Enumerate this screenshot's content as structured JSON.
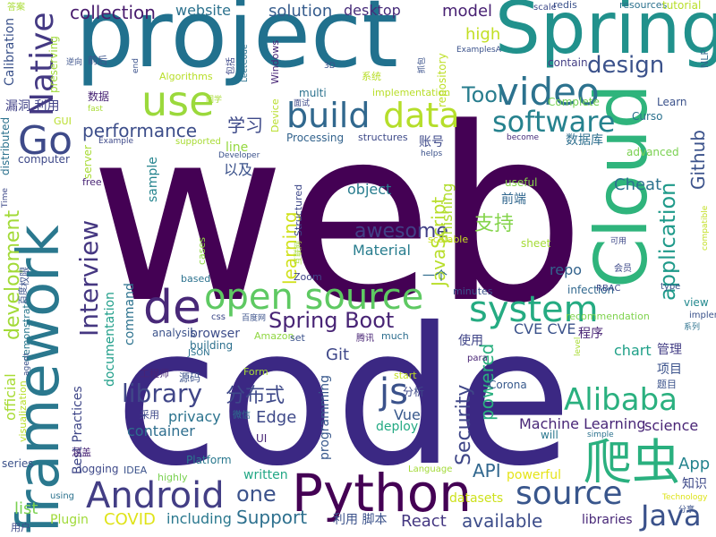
{
  "palette": {
    "deep_purple": "#440154",
    "indigo": "#3b2883",
    "blue": "#31688e",
    "teal": "#21918c",
    "green": "#35b779",
    "lime": "#90d743",
    "yellow": "#dde318"
  },
  "words": [
    {
      "text": "web",
      "color": "#440154"
    },
    {
      "text": "code",
      "color": "#3b2883"
    },
    {
      "text": "project",
      "color": "#21718e"
    },
    {
      "text": "Spring",
      "color": "#21918c"
    },
    {
      "text": "Cloud",
      "color": "#2fb47c"
    },
    {
      "text": "framework",
      "color": "#2a788e"
    },
    {
      "text": "Python",
      "color": "#440154"
    },
    {
      "text": "Android",
      "color": "#433e85"
    },
    {
      "text": "open source",
      "color": "#5ec962"
    },
    {
      "text": "use",
      "color": "#9bd93c"
    },
    {
      "text": "build",
      "color": "#31688e"
    },
    {
      "text": "data",
      "color": "#b5de2b"
    },
    {
      "text": "video",
      "color": "#2c728e"
    },
    {
      "text": "software",
      "color": "#26828e"
    },
    {
      "text": "Go",
      "color": "#3e4a89"
    },
    {
      "text": "de",
      "color": "#482878"
    },
    {
      "text": "system",
      "color": "#25ab82"
    },
    {
      "text": "Native",
      "color": "#443983"
    },
    {
      "text": "design",
      "color": "#3b528b"
    },
    {
      "text": "Alibaba",
      "color": "#2ab07f"
    },
    {
      "text": "js",
      "color": "#3b528b"
    },
    {
      "text": "爬虫",
      "color": "#2ab07f"
    },
    {
      "text": "source",
      "color": "#39568c"
    },
    {
      "text": "Java",
      "color": "#3b528b"
    },
    {
      "text": "library",
      "color": "#404688"
    },
    {
      "text": "Interview",
      "color": "#453781"
    },
    {
      "text": "Spring Boot",
      "color": "#482475"
    },
    {
      "text": "分布式",
      "color": "#3e4989"
    },
    {
      "text": "one",
      "color": "#3b528b"
    },
    {
      "text": "Tool",
      "color": "#287d8e"
    },
    {
      "text": "application",
      "color": "#1f9a8a"
    },
    {
      "text": "performance",
      "color": "#3d4e8a"
    },
    {
      "text": "Github",
      "color": "#3b528b"
    },
    {
      "text": "awesome",
      "color": "#424086"
    },
    {
      "text": "collection",
      "color": "#481b6d"
    },
    {
      "text": "website",
      "color": "#2c728e"
    },
    {
      "text": "solution",
      "color": "#365c8d"
    },
    {
      "text": "desktop",
      "color": "#472c7a"
    },
    {
      "text": "model",
      "color": "#482173"
    },
    {
      "text": "high",
      "color": "#c2df23"
    },
    {
      "text": "学习",
      "color": "#3e4a89"
    },
    {
      "text": "Security",
      "color": "#3f4788"
    },
    {
      "text": "powered",
      "color": "#29af7f"
    },
    {
      "text": "development",
      "color": "#a2da37"
    },
    {
      "text": "JavaScript",
      "color": "#b8de29"
    },
    {
      "text": "支持",
      "color": "#84d44b"
    },
    {
      "text": "Cheat",
      "color": "#2c728e"
    },
    {
      "text": "object",
      "color": "#287c8e"
    },
    {
      "text": "Material",
      "color": "#287d8e"
    },
    {
      "text": "learning",
      "color": "#d0e11c"
    },
    {
      "text": "Support",
      "color": "#2d708e"
    },
    {
      "text": "Machine Learning",
      "color": "#482677"
    },
    {
      "text": "Edge",
      "color": "#3e4989"
    },
    {
      "text": "React",
      "color": "#453882"
    },
    {
      "text": "API",
      "color": "#31678e"
    },
    {
      "text": "App",
      "color": "#25848e"
    },
    {
      "text": "COVID",
      "color": "#dfe318"
    },
    {
      "text": "Git",
      "color": "#3f4889"
    },
    {
      "text": "Vue",
      "color": "#38598c"
    },
    {
      "text": "container",
      "color": "#2e6e8e"
    },
    {
      "text": "privacy",
      "color": "#2c738e"
    },
    {
      "text": "available",
      "color": "#3d4d8a"
    },
    {
      "text": "list",
      "color": "#7ad151"
    },
    {
      "text": "official",
      "color": "#a8db34"
    },
    {
      "text": "Phishing",
      "color": "#b0dd2f"
    },
    {
      "text": "repo",
      "color": "#33638d"
    },
    {
      "text": "CVE CVE",
      "color": "#3b528b"
    },
    {
      "text": "chart",
      "color": "#1fa088"
    },
    {
      "text": "science",
      "color": "#482475"
    },
    {
      "text": "including",
      "color": "#2a788e"
    },
    {
      "text": "written",
      "color": "#22a785"
    },
    {
      "text": "programming",
      "color": "#38588c"
    },
    {
      "text": "deploy",
      "color": "#24aa83"
    },
    {
      "text": "browser",
      "color": "#3d4d8a"
    },
    {
      "text": "sample",
      "color": "#25848e"
    },
    {
      "text": "command",
      "color": "#2c728e"
    },
    {
      "text": "documentation",
      "color": "#1f9e89"
    },
    {
      "text": "Best Practices",
      "color": "#3f4788"
    },
    {
      "text": "powerful",
      "color": "#e5e419"
    },
    {
      "text": "libraries",
      "color": "#482878"
    },
    {
      "text": "Plugin",
      "color": "#a0da39"
    },
    {
      "text": "知识",
      "color": "#3e4989"
    },
    {
      "text": "程序",
      "color": "#482475"
    },
    {
      "text": "管理",
      "color": "#433e85"
    },
    {
      "text": "项目",
      "color": "#3b528b"
    },
    {
      "text": "使用",
      "color": "#404588"
    },
    {
      "text": "前端",
      "color": "#31678e"
    },
    {
      "text": "数据库",
      "color": "#2e6f8e"
    },
    {
      "text": "账号",
      "color": "#3e4989"
    },
    {
      "text": "一个",
      "color": "#2f6c8e"
    },
    {
      "text": "以及",
      "color": "#3b528b"
    },
    {
      "text": "利用 脚本",
      "color": "#3b528b"
    },
    {
      "text": "漏洞 利用",
      "color": "#414287"
    },
    {
      "text": "logging",
      "color": "#3e4989"
    },
    {
      "text": "Zoom",
      "color": "#404588"
    },
    {
      "text": "minutes",
      "color": "#3b528b"
    },
    {
      "text": "infection",
      "color": "#31688e"
    },
    {
      "text": "Curso",
      "color": "#2c728e"
    },
    {
      "text": "Corona",
      "color": "#38598c"
    },
    {
      "text": "UI",
      "color": "#482475"
    },
    {
      "text": "view",
      "color": "#23898e"
    },
    {
      "text": "recommendation",
      "color": "#7fd34e"
    },
    {
      "text": "structures",
      "color": "#3e4a89"
    },
    {
      "text": "line",
      "color": "#95d840"
    },
    {
      "text": "Processing",
      "color": "#33638d"
    },
    {
      "text": "scalable",
      "color": "#c8e020"
    },
    {
      "text": "sheet",
      "color": "#a5db36"
    },
    {
      "text": "repository",
      "color": "#bddf26"
    },
    {
      "text": "multi",
      "color": "#2c728e"
    },
    {
      "text": "advanced",
      "color": "#7ad151"
    },
    {
      "text": "become",
      "color": "#472d7b"
    },
    {
      "text": "Learn",
      "color": "#3b528b"
    },
    {
      "text": "Complete",
      "color": "#75d054"
    },
    {
      "text": "contain",
      "color": "#433e85"
    },
    {
      "text": "useful",
      "color": "#86d549"
    },
    {
      "text": "Platform",
      "color": "#2a788e"
    },
    {
      "text": "highly",
      "color": "#7ad151"
    },
    {
      "text": "Device",
      "color": "#b8de29"
    },
    {
      "text": "Windows",
      "color": "#482677"
    },
    {
      "text": "Structured",
      "color": "#3e4989"
    },
    {
      "text": "Language",
      "color": "#a2da37"
    },
    {
      "text": "datasets",
      "color": "#cde11d"
    },
    {
      "text": "cases",
      "color": "#90d743"
    },
    {
      "text": "based",
      "color": "#2c728e"
    },
    {
      "text": "analysis",
      "color": "#3b528b"
    },
    {
      "text": "building",
      "color": "#2d708e"
    },
    {
      "text": "much",
      "color": "#2e6e8e"
    },
    {
      "text": "Amazon",
      "color": "#90d743"
    },
    {
      "text": "Form",
      "color": "#a8db34"
    },
    {
      "text": "start",
      "color": "#c2df23"
    },
    {
      "text": "will",
      "color": "#2a788e"
    },
    {
      "text": "type",
      "color": "#3b528b"
    },
    {
      "text": "RBAC",
      "color": "#3e4a89"
    },
    {
      "text": "implemented",
      "color": "#3b528b"
    },
    {
      "text": "redis",
      "color": "#3b528b"
    },
    {
      "text": "resources",
      "color": "#2c728e"
    },
    {
      "text": "tutorial",
      "color": "#b8de29"
    },
    {
      "text": "scale",
      "color": "#3e4989"
    },
    {
      "text": "NLP",
      "color": "#31688e"
    },
    {
      "text": "Calibration",
      "color": "#3b528b"
    },
    {
      "text": "preserving",
      "color": "#a0da39"
    },
    {
      "text": "distributed",
      "color": "#2c728e"
    },
    {
      "text": "computer",
      "color": "#3e4989"
    },
    {
      "text": "server",
      "color": "#a8db34"
    },
    {
      "text": "free",
      "color": "#482475"
    },
    {
      "text": "权限",
      "color": "#3b528b"
    },
    {
      "text": "demonstrate",
      "color": "#2a788e"
    },
    {
      "text": "visualization",
      "color": "#b8de29"
    },
    {
      "text": "series",
      "color": "#3b528b"
    },
    {
      "text": "涵盖",
      "color": "#482475"
    },
    {
      "text": "用户",
      "color": "#3e4989"
    },
    {
      "text": "using",
      "color": "#2c728e"
    },
    {
      "text": "IDEA",
      "color": "#3b528b"
    },
    {
      "text": "para",
      "color": "#482475"
    },
    {
      "text": "JSON",
      "color": "#2c728e"
    },
    {
      "text": "css",
      "color": "#3e4989"
    },
    {
      "text": "set",
      "color": "#3b528b"
    },
    {
      "text": "腾讯",
      "color": "#482475"
    },
    {
      "text": "采用",
      "color": "#3e4989"
    },
    {
      "text": "微信",
      "color": "#2c728e"
    },
    {
      "text": "源码",
      "color": "#3b528b"
    },
    {
      "text": "工程师",
      "color": "#482475"
    },
    {
      "text": "分析",
      "color": "#3e4989"
    },
    {
      "text": "题目",
      "color": "#3b528b"
    },
    {
      "text": "数据",
      "color": "#482475"
    },
    {
      "text": "前后",
      "color": "#3b528b"
    },
    {
      "text": "系统",
      "color": "#b8de29"
    },
    {
      "text": "同学",
      "color": "#a8db34"
    },
    {
      "text": "面试",
      "color": "#3e4989"
    },
    {
      "text": "百度网",
      "color": "#3b528b"
    },
    {
      "text": "百度",
      "color": "#3b528b"
    },
    {
      "text": "会员",
      "color": "#3e4989"
    },
    {
      "text": "系列",
      "color": "#2c728e"
    },
    {
      "text": "分享",
      "color": "#3b528b"
    },
    {
      "text": "可用",
      "color": "#3e4989"
    },
    {
      "text": "互联网",
      "color": "#a8db34"
    },
    {
      "text": "逆向",
      "color": "#3b528b"
    },
    {
      "text": "抓包",
      "color": "#3b528b"
    },
    {
      "text": "包括",
      "color": "#3e4989"
    },
    {
      "text": "答案",
      "color": "#a8db34"
    },
    {
      "text": "end",
      "color": "#3b528b"
    },
    {
      "text": "Algorithms",
      "color": "#b8de29"
    },
    {
      "text": "LeetCode",
      "color": "#2c728e"
    },
    {
      "text": "implementation",
      "color": "#b8de29"
    },
    {
      "text": "ExamplesA",
      "color": "#3b528b"
    },
    {
      "text": "3D",
      "color": "#3b528b"
    },
    {
      "text": "GUI",
      "color": "#b8de29"
    },
    {
      "text": "fast",
      "color": "#a8db34"
    },
    {
      "text": "Example",
      "color": "#3e4989"
    },
    {
      "text": "supported",
      "color": "#a8db34"
    },
    {
      "text": "Developer",
      "color": "#3b528b"
    },
    {
      "text": "helps",
      "color": "#3b528b"
    },
    {
      "text": "Time",
      "color": "#3e4989"
    },
    {
      "text": "agent",
      "color": "#3b528b"
    },
    {
      "text": "level",
      "color": "#a8db34"
    },
    {
      "text": "simple",
      "color": "#2c728e"
    },
    {
      "text": "Technology",
      "color": "#dde318"
    },
    {
      "text": "compatible",
      "color": "#c2df23"
    },
    {
      "text": "conferencing",
      "color": "#3b528b"
    }
  ]
}
